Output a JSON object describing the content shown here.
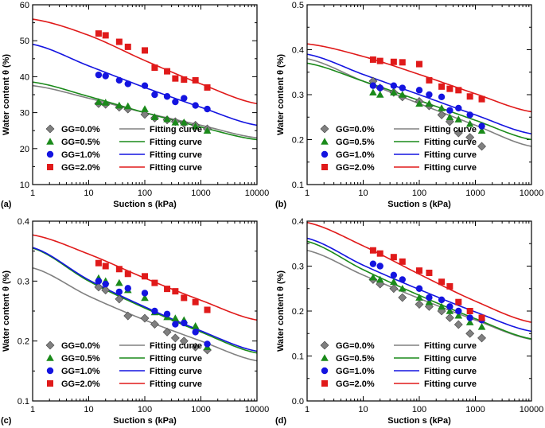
{
  "chart_data": [
    {
      "type": "scatter",
      "panel_label": "(a)",
      "xscale": "log",
      "xlim": [
        1,
        10000
      ],
      "ylim": [
        10,
        60
      ],
      "yticks": [
        10,
        20,
        30,
        40,
        50,
        60
      ],
      "xlabel": "Suction s (kPa)",
      "ylabel": "Water content θ (%)",
      "legend_position": "bottom-left",
      "x": [
        15,
        20,
        35,
        50,
        100,
        150,
        250,
        350,
        500,
        800,
        1300
      ],
      "series": [
        {
          "name": "GG=0.0%",
          "marker": "diamond",
          "color": "#808080",
          "curve_label": "Fitting curve",
          "values": [
            32.5,
            32.3,
            31.5,
            31.0,
            29.5,
            28.5,
            28.0,
            27.5,
            27.0,
            26.5,
            25.5
          ],
          "curve_points": [
            [
              1,
              37.5
            ],
            [
              10,
              34.0
            ],
            [
              100,
              30.0
            ],
            [
              1000,
              26.5
            ],
            [
              10000,
              23.0
            ]
          ]
        },
        {
          "name": "GG=0.5%",
          "marker": "triangle",
          "color": "#1a8a1a",
          "curve_label": "Fitting curve",
          "values": [
            33.0,
            32.8,
            32.0,
            31.8,
            31.0,
            28.8,
            28.2,
            27.3,
            27.3,
            26.2,
            25.0
          ],
          "curve_points": [
            [
              1,
              38.5
            ],
            [
              10,
              34.5
            ],
            [
              100,
              30.0
            ],
            [
              1000,
              26.0
            ],
            [
              10000,
              22.5
            ]
          ]
        },
        {
          "name": "GG=1.0%",
          "marker": "circle",
          "color": "#1414e0",
          "curve_label": "Fitting curve",
          "values": [
            40.5,
            40.2,
            39.0,
            38.0,
            37.5,
            35.0,
            34.5,
            33.0,
            34.0,
            32.0,
            31.0
          ],
          "curve_points": [
            [
              1,
              49.0
            ],
            [
              10,
              43.0
            ],
            [
              100,
              37.0
            ],
            [
              1000,
              31.5
            ],
            [
              10000,
              26.5
            ]
          ]
        },
        {
          "name": "GG=2.0%",
          "marker": "square",
          "color": "#e01a1a",
          "curve_label": "Fitting curve",
          "values": [
            52.0,
            51.5,
            49.7,
            48.3,
            47.3,
            42.5,
            41.5,
            39.5,
            39.2,
            39.0,
            37.0
          ],
          "curve_points": [
            [
              1,
              56.0
            ],
            [
              10,
              51.5
            ],
            [
              100,
              44.5
            ],
            [
              1000,
              38.0
            ],
            [
              10000,
              32.5
            ]
          ]
        }
      ]
    },
    {
      "type": "scatter",
      "panel_label": "(b)",
      "xscale": "log",
      "xlim": [
        1,
        10000
      ],
      "ylim": [
        0.1,
        0.5
      ],
      "yticks": [
        0.1,
        0.2,
        0.3,
        0.4,
        0.5
      ],
      "xlabel": "Suction s (kPa)",
      "ylabel": "Water content θ (%)",
      "legend_position": "bottom-left",
      "x": [
        15,
        20,
        35,
        50,
        100,
        150,
        250,
        350,
        500,
        800,
        1300
      ],
      "series": [
        {
          "name": "GG=0.0%",
          "marker": "diamond",
          "color": "#808080",
          "curve_label": "Fitting curve",
          "values": [
            0.33,
            0.315,
            0.305,
            0.295,
            0.285,
            0.275,
            0.255,
            0.24,
            0.215,
            0.205,
            0.185
          ],
          "curve_points": [
            [
              1,
              0.38
            ],
            [
              10,
              0.33
            ],
            [
              100,
              0.28
            ],
            [
              1000,
              0.232
            ],
            [
              10000,
              0.185
            ]
          ]
        },
        {
          "name": "GG=0.5%",
          "marker": "triangle",
          "color": "#1a8a1a",
          "curve_label": "Fitting curve",
          "values": [
            0.305,
            0.3,
            0.305,
            0.3,
            0.28,
            0.28,
            0.27,
            0.25,
            0.245,
            0.235,
            0.22
          ],
          "curve_points": [
            [
              1,
              0.37
            ],
            [
              10,
              0.33
            ],
            [
              100,
              0.287
            ],
            [
              1000,
              0.243
            ],
            [
              10000,
              0.2
            ]
          ]
        },
        {
          "name": "GG=1.0%",
          "marker": "circle",
          "color": "#1414e0",
          "curve_label": "Fitting curve",
          "values": [
            0.32,
            0.315,
            0.32,
            0.315,
            0.31,
            0.3,
            0.295,
            0.265,
            0.27,
            0.255,
            0.23
          ],
          "curve_points": [
            [
              1,
              0.39
            ],
            [
              10,
              0.345
            ],
            [
              100,
              0.3
            ],
            [
              1000,
              0.255
            ],
            [
              10000,
              0.213
            ]
          ]
        },
        {
          "name": "GG=2.0%",
          "marker": "square",
          "color": "#e01a1a",
          "curve_label": "Fitting curve",
          "values": [
            0.378,
            0.375,
            0.373,
            0.372,
            0.368,
            0.332,
            0.318,
            0.313,
            0.31,
            0.296,
            0.29
          ],
          "curve_points": [
            [
              1,
              0.413
            ],
            [
              10,
              0.385
            ],
            [
              100,
              0.345
            ],
            [
              1000,
              0.302
            ],
            [
              10000,
              0.262
            ]
          ]
        }
      ]
    },
    {
      "type": "scatter",
      "panel_label": "(c)",
      "xscale": "log",
      "xlim": [
        1,
        10000
      ],
      "ylim": [
        0.1,
        0.4
      ],
      "yticks": [
        0.1,
        0.2,
        0.3,
        0.4
      ],
      "xlabel": "Suction s (kPa)",
      "ylabel": "Water content θ (%)",
      "legend_position": "bottom-left",
      "x": [
        15,
        20,
        35,
        50,
        100,
        150,
        250,
        350,
        500,
        800,
        1300
      ],
      "series": [
        {
          "name": "GG=0.0%",
          "marker": "diamond",
          "color": "#808080",
          "curve_label": "Fitting curve",
          "values": [
            0.29,
            0.285,
            0.27,
            0.242,
            0.238,
            0.228,
            0.215,
            0.205,
            0.2,
            0.19,
            0.185
          ],
          "curve_points": [
            [
              1,
              0.322
            ],
            [
              10,
              0.275
            ],
            [
              100,
              0.235
            ],
            [
              1000,
              0.2
            ],
            [
              10000,
              0.167
            ]
          ]
        },
        {
          "name": "GG=0.5%",
          "marker": "triangle",
          "color": "#1a8a1a",
          "curve_label": "Fitting curve",
          "values": [
            0.305,
            0.3,
            0.297,
            0.285,
            0.272,
            0.248,
            0.24,
            0.238,
            0.235,
            0.225,
            0.19
          ],
          "curve_points": [
            [
              1,
              0.355
            ],
            [
              10,
              0.3
            ],
            [
              100,
              0.255
            ],
            [
              1000,
              0.215
            ],
            [
              10000,
              0.18
            ]
          ]
        },
        {
          "name": "GG=1.0%",
          "marker": "circle",
          "color": "#1414e0",
          "curve_label": "Fitting curve",
          "values": [
            0.3,
            0.295,
            0.282,
            0.288,
            0.28,
            0.25,
            0.245,
            0.228,
            0.23,
            0.215,
            0.195
          ],
          "curve_points": [
            [
              1,
              0.356
            ],
            [
              10,
              0.302
            ],
            [
              100,
              0.257
            ],
            [
              1000,
              0.217
            ],
            [
              10000,
              0.183
            ]
          ]
        },
        {
          "name": "GG=2.0%",
          "marker": "square",
          "color": "#e01a1a",
          "curve_label": "Fitting curve",
          "values": [
            0.33,
            0.325,
            0.32,
            0.312,
            0.308,
            0.297,
            0.287,
            0.283,
            0.272,
            0.265,
            0.252
          ],
          "curve_points": [
            [
              1,
              0.377
            ],
            [
              10,
              0.345
            ],
            [
              100,
              0.305
            ],
            [
              1000,
              0.268
            ],
            [
              10000,
              0.235
            ]
          ]
        }
      ]
    },
    {
      "type": "scatter",
      "panel_label": "(d)",
      "xscale": "log",
      "xlim": [
        1,
        10000
      ],
      "ylim": [
        0.0,
        0.4
      ],
      "yticks": [
        0.0,
        0.1,
        0.2,
        0.3,
        0.4
      ],
      "xlabel": "Suction s (kPa)",
      "ylabel": "Water content θ (%)",
      "legend_position": "bottom-left",
      "x": [
        15,
        20,
        35,
        50,
        100,
        150,
        250,
        350,
        500,
        800,
        1300
      ],
      "series": [
        {
          "name": "GG=0.0%",
          "marker": "diamond",
          "color": "#808080",
          "curve_label": "Fitting curve",
          "values": [
            0.27,
            0.26,
            0.25,
            0.23,
            0.215,
            0.21,
            0.2,
            0.185,
            0.17,
            0.15,
            0.14
          ],
          "curve_points": [
            [
              1,
              0.335
            ],
            [
              10,
              0.28
            ],
            [
              100,
              0.228
            ],
            [
              1000,
              0.18
            ],
            [
              10000,
              0.137
            ]
          ]
        },
        {
          "name": "GG=0.5%",
          "marker": "triangle",
          "color": "#1a8a1a",
          "curve_label": "Fitting curve",
          "values": [
            0.275,
            0.27,
            0.265,
            0.25,
            0.23,
            0.22,
            0.21,
            0.2,
            0.19,
            0.175,
            0.165
          ],
          "curve_points": [
            [
              1,
              0.355
            ],
            [
              10,
              0.292
            ],
            [
              100,
              0.235
            ],
            [
              1000,
              0.183
            ],
            [
              10000,
              0.138
            ]
          ]
        },
        {
          "name": "GG=1.0%",
          "marker": "circle",
          "color": "#1414e0",
          "curve_label": "Fitting curve",
          "values": [
            0.305,
            0.3,
            0.28,
            0.27,
            0.25,
            0.23,
            0.225,
            0.21,
            0.2,
            0.185,
            0.18
          ],
          "curve_points": [
            [
              1,
              0.362
            ],
            [
              10,
              0.302
            ],
            [
              100,
              0.248
            ],
            [
              1000,
              0.198
            ],
            [
              10000,
              0.155
            ]
          ]
        },
        {
          "name": "GG=2.0%",
          "marker": "square",
          "color": "#e01a1a",
          "curve_label": "Fitting curve",
          "values": [
            0.335,
            0.328,
            0.32,
            0.31,
            0.29,
            0.285,
            0.265,
            0.255,
            0.22,
            0.2,
            0.185
          ],
          "curve_points": [
            [
              1,
              0.397
            ],
            [
              10,
              0.345
            ],
            [
              100,
              0.282
            ],
            [
              1000,
              0.222
            ],
            [
              10000,
              0.175
            ]
          ]
        }
      ]
    }
  ]
}
